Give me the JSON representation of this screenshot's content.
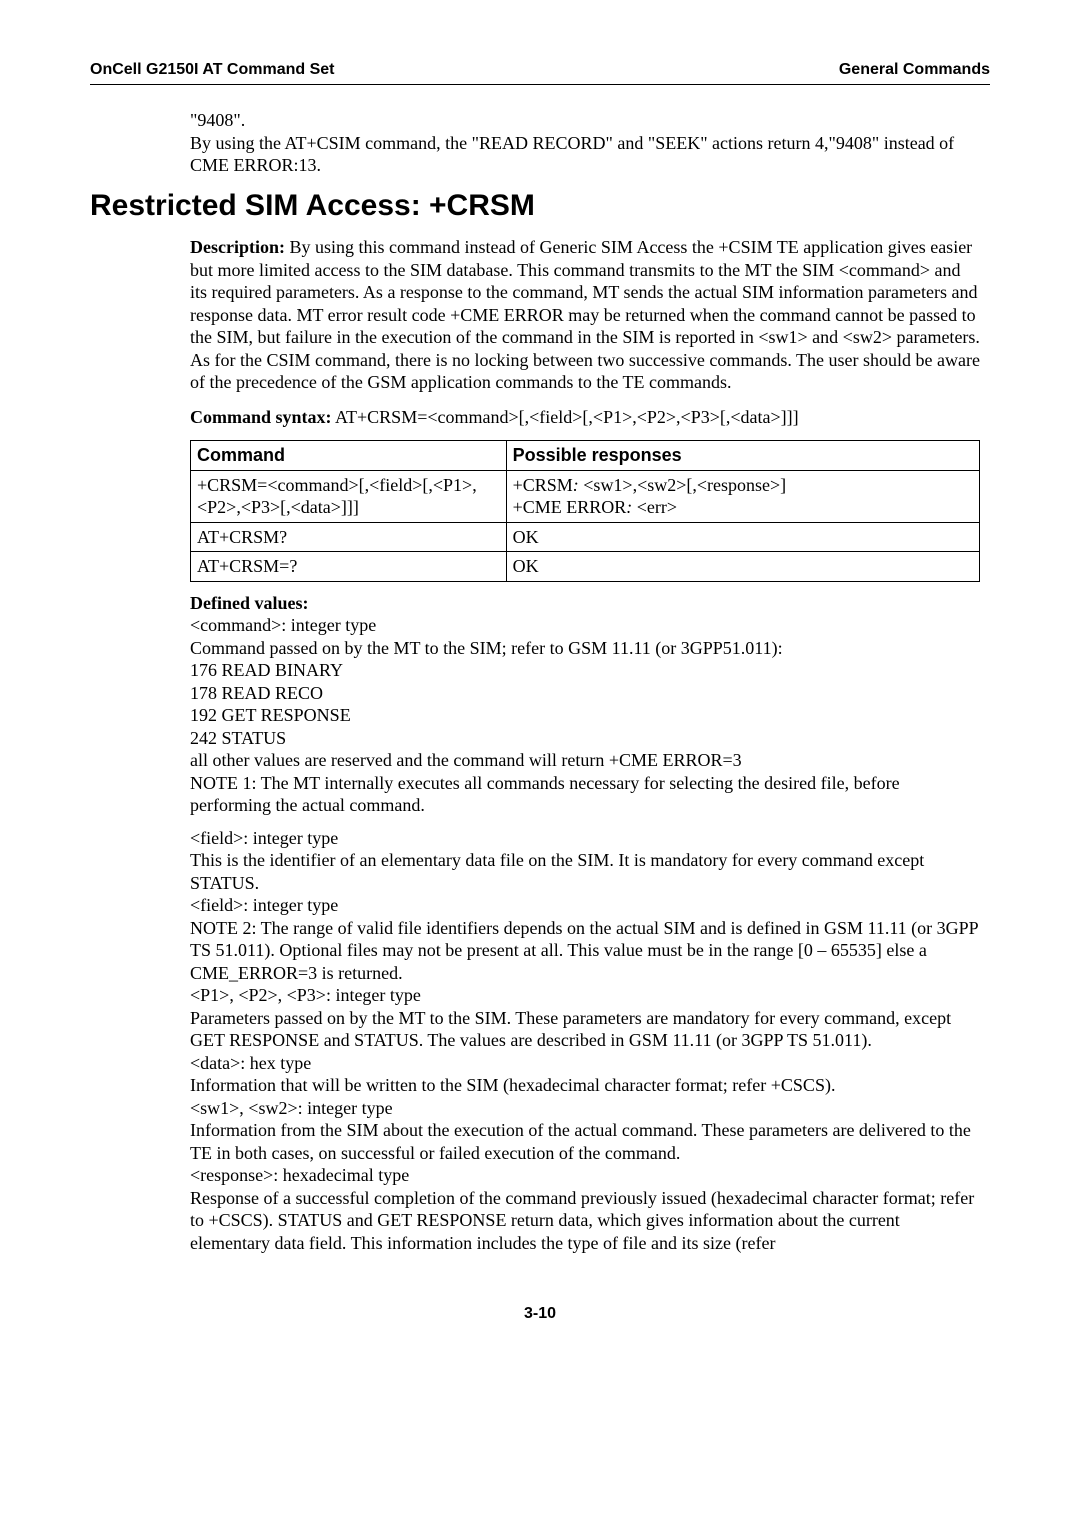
{
  "header": {
    "left": "OnCell G2150I AT Command Set",
    "right": "General Commands"
  },
  "intro": {
    "line1": "\"9408\".",
    "line2": "By using the AT+CSIM command, the \"READ RECORD\" and \"SEEK\" actions return 4,\"9408\" instead of CME ERROR:13."
  },
  "title": "Restricted SIM Access: +CRSM",
  "desc_label": "Description:",
  "desc": " By using this command instead of Generic SIM Access the +CSIM TE application gives easier but more limited access to the SIM database. This command transmits to the MT the SIM <command> and its required parameters. As a response to the command, MT sends the actual SIM information parameters and response data. MT error result code +CME ERROR may be returned when the command cannot be passed to the SIM, but failure in the execution of the command in the SIM is reported in <sw1> and <sw2> parameters. As for the CSIM command, there is no locking between two successive commands. The user should be aware of the precedence of the GSM application commands to the TE commands.",
  "syntax_label": "Command syntax:",
  "syntax": " AT+CRSM=<command>[,<field>[,<P1>,<P2>,<P3>[,<data>]]]",
  "table": {
    "h1": "Command",
    "h2": "Possible responses",
    "r1c1": "+CRSM=<command>[,<field>[,<P1>,<P2>,<P3>[,<data>]]]",
    "r1c2a": "+CRSM",
    "r1c2b": " <sw1>,<sw2>[,<response>]",
    "r1c2c": "+CME ERROR",
    "r1c2d": " <err>",
    "r2c1": "AT+CRSM?",
    "r2c2": "OK",
    "r3c1": "AT+CRSM=?",
    "r3c2": "OK"
  },
  "defv_label": "Defined values:",
  "dv": {
    "l1": "<command>: integer type",
    "l2": "Command passed on by the MT to the SIM; refer to GSM 11.11 (or 3GPP51.011):",
    "l3": "176 READ BINARY",
    "l4": "178 READ RECO",
    "l5": "192 GET RESPONSE",
    "l6": "242 STATUS",
    "l7": "all other values are reserved and the command will return +CME ERROR=3",
    "l8": "NOTE 1: The MT internally executes all commands necessary for selecting the desired file, before performing the actual command.",
    "l9": "<field>: integer type",
    "l10": "This is the identifier of an elementary data file on the SIM. It is mandatory for every command except STATUS.",
    "l11": "<field>: integer type",
    "l12": "NOTE 2: The range of valid file identifiers depends on the actual SIM and is defined in GSM 11.11 (or 3GPP TS 51.011). Optional files may not be present at all. This value must be in the range [0 – 65535] else a CME_ERROR=3 is returned.",
    "l13": "<P1>, <P2>, <P3>: integer type",
    "l14": "Parameters passed on by the MT to the SIM. These parameters are mandatory for every command, except GET RESPONSE and STATUS. The values are described in GSM 11.11 (or 3GPP TS 51.011).",
    "l15": "<data>: hex type",
    "l16": "Information that will be written to the SIM (hexadecimal character format; refer +CSCS).",
    "l17": "<sw1>, <sw2>: integer type",
    "l18": "Information from the SIM about the execution of the actual command. These parameters are delivered to the TE in both cases, on successful or failed execution of the command.",
    "l19": "<response>: hexadecimal type",
    "l20": "Response of a successful completion of the command previously issued (hexadecimal character format; refer to +CSCS). STATUS and GET RESPONSE return data, which gives information about the current elementary data field. This information includes the type of file and its size (refer"
  },
  "footer": "3-10"
}
